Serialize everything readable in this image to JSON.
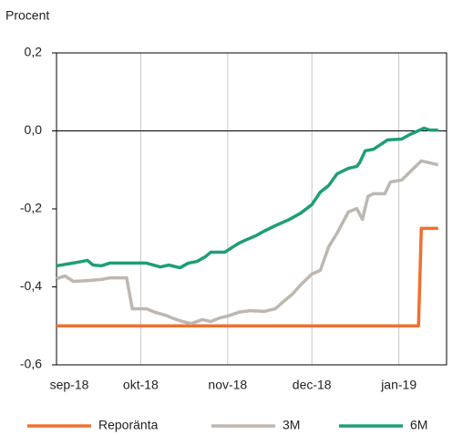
{
  "chart_data": {
    "type": "line",
    "y_label": "Procent",
    "xlim": [
      0,
      139
    ],
    "xticks": [
      {
        "value": 0,
        "label": "sep-18"
      },
      {
        "value": 30,
        "label": "okt-18"
      },
      {
        "value": 61,
        "label": "nov-18"
      },
      {
        "value": 91,
        "label": "dec-18"
      },
      {
        "value": 122,
        "label": "jan-19"
      }
    ],
    "ylim": [
      -0.6,
      0.2
    ],
    "yticks": [
      {
        "value": 0.2,
        "label": "0,2"
      },
      {
        "value": 0,
        "label": "0,0"
      },
      {
        "value": -0.2,
        "label": "-0,2"
      },
      {
        "value": -0.4,
        "label": "-0,4"
      },
      {
        "value": -0.6,
        "label": "-0,6"
      }
    ],
    "grid": "x",
    "series": [
      {
        "name": "Reporänta",
        "color": "#f07030",
        "x": [
          0,
          129,
          130,
          136
        ],
        "values": [
          -0.5,
          -0.5,
          -0.25,
          -0.25
        ]
      },
      {
        "name": "3M",
        "color": "#bdb7af",
        "x": [
          0,
          3,
          6,
          11,
          16,
          19,
          25,
          27,
          32,
          35,
          39,
          42,
          45,
          48,
          52,
          55,
          58,
          61,
          65,
          69,
          74,
          78,
          81,
          84,
          87,
          91,
          94,
          97,
          100,
          104,
          107,
          109,
          111,
          113,
          117,
          119,
          123,
          126,
          130,
          133,
          136
        ],
        "values": [
          -0.379,
          -0.372,
          -0.386,
          -0.384,
          -0.381,
          -0.377,
          -0.377,
          -0.456,
          -0.456,
          -0.465,
          -0.473,
          -0.482,
          -0.489,
          -0.494,
          -0.484,
          -0.489,
          -0.48,
          -0.475,
          -0.465,
          -0.461,
          -0.463,
          -0.456,
          -0.437,
          -0.419,
          -0.395,
          -0.367,
          -0.358,
          -0.297,
          -0.262,
          -0.208,
          -0.199,
          -0.227,
          -0.168,
          -0.161,
          -0.161,
          -0.131,
          -0.126,
          -0.105,
          -0.077,
          -0.082,
          -0.087
        ]
      },
      {
        "name": "6M",
        "color": "#1e9e78",
        "x": [
          0,
          5,
          9,
          11,
          13,
          16,
          19,
          26,
          32,
          37,
          40,
          44,
          47,
          50,
          53,
          55,
          60,
          63,
          65,
          68,
          71,
          74,
          78,
          83,
          87,
          91,
          94,
          97,
          100,
          104,
          107,
          108,
          110,
          113,
          118,
          123,
          126,
          131,
          133,
          136
        ],
        "values": [
          -0.346,
          -0.34,
          -0.335,
          -0.332,
          -0.344,
          -0.346,
          -0.339,
          -0.339,
          -0.339,
          -0.349,
          -0.344,
          -0.351,
          -0.339,
          -0.335,
          -0.323,
          -0.311,
          -0.311,
          -0.297,
          -0.288,
          -0.278,
          -0.269,
          -0.257,
          -0.243,
          -0.227,
          -0.211,
          -0.189,
          -0.157,
          -0.14,
          -0.11,
          -0.096,
          -0.091,
          -0.082,
          -0.051,
          -0.047,
          -0.023,
          -0.021,
          -0.009,
          0.007,
          0.002,
          0.002
        ]
      }
    ]
  }
}
